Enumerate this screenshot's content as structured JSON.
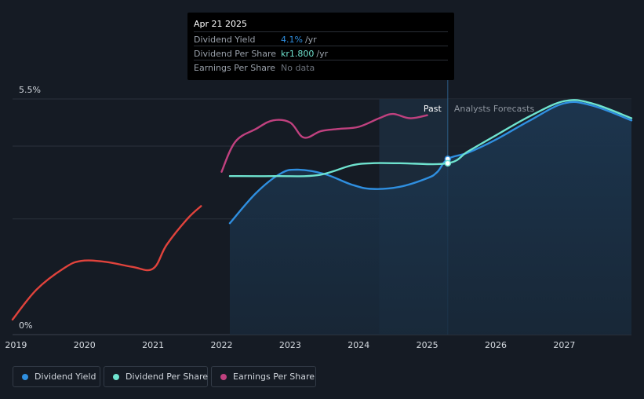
{
  "colors": {
    "background": "#151b24",
    "grid": "#2b323d",
    "dividend_yield": "#2f8fe0",
    "dividend_per_share": "#6fe3cf",
    "earnings_per_share": "#c0417f",
    "earnings_early": "#e0433c",
    "forecast_band": "#1d3650"
  },
  "tooltip": {
    "date": "Apr 21 2025",
    "rows": [
      {
        "label": "Dividend Yield",
        "value": "4.1%",
        "unit": "/yr",
        "color": "#2f8fe0"
      },
      {
        "label": "Dividend Per Share",
        "value": "kr1.800",
        "unit": "/yr",
        "color": "#6fe3cf"
      },
      {
        "label": "Earnings Per Share",
        "value": "No data",
        "unit": "",
        "color": "#6b717a"
      }
    ]
  },
  "legend": [
    {
      "label": "Dividend Yield",
      "color": "#2f8fe0"
    },
    {
      "label": "Dividend Per Share",
      "color": "#6fe3cf"
    },
    {
      "label": "Earnings Per Share",
      "color": "#c0417f"
    }
  ],
  "chart_data": {
    "type": "line",
    "title": "",
    "xlabel": "",
    "ylabel": "",
    "xlim": [
      2018.95,
      2027.98
    ],
    "ylim": [
      0,
      5.5
    ],
    "y_tick_labels": [
      {
        "value": 5.5,
        "label": "5.5%"
      },
      {
        "value": 0,
        "label": "0%"
      }
    ],
    "x_ticks": [
      2019,
      2020,
      2021,
      2022,
      2023,
      2024,
      2025,
      2026,
      2027
    ],
    "x_tick_labels": [
      "2019",
      "2020",
      "2021",
      "2022",
      "2023",
      "2024",
      "2025",
      "2026",
      "2027"
    ],
    "gridlines_y": [
      5.5,
      4.4,
      2.7
    ],
    "past_label": "Past",
    "forecast_label": "Analysts Forecasts",
    "divider_x": 2025.3,
    "past_highlight_start": 2024.3,
    "series": [
      {
        "name": "Dividend Yield",
        "color": "#2f8fe0",
        "filled": true,
        "points": [
          [
            2022.12,
            2.6
          ],
          [
            2022.5,
            3.3
          ],
          [
            2022.85,
            3.75
          ],
          [
            2023.1,
            3.85
          ],
          [
            2023.5,
            3.75
          ],
          [
            2023.9,
            3.5
          ],
          [
            2024.2,
            3.4
          ],
          [
            2024.6,
            3.45
          ],
          [
            2025.0,
            3.65
          ],
          [
            2025.15,
            3.8
          ],
          [
            2025.3,
            4.1
          ],
          [
            2025.6,
            4.25
          ],
          [
            2026.0,
            4.55
          ],
          [
            2026.5,
            5.0
          ],
          [
            2027.0,
            5.4
          ],
          [
            2027.4,
            5.35
          ],
          [
            2027.98,
            5.0
          ]
        ]
      },
      {
        "name": "Dividend Per Share",
        "color": "#6fe3cf",
        "filled": false,
        "points": [
          [
            2022.12,
            3.7
          ],
          [
            2022.8,
            3.7
          ],
          [
            2023.4,
            3.72
          ],
          [
            2023.9,
            3.95
          ],
          [
            2024.2,
            4.0
          ],
          [
            2024.6,
            4.0
          ],
          [
            2025.3,
            4.0
          ],
          [
            2025.6,
            4.28
          ],
          [
            2026.0,
            4.65
          ],
          [
            2026.5,
            5.1
          ],
          [
            2027.0,
            5.45
          ],
          [
            2027.4,
            5.4
          ],
          [
            2027.98,
            5.05
          ]
        ]
      },
      {
        "name": "Earnings Per Share",
        "color": "#c0417f",
        "segment_colors": [
          "#e0433c",
          "#c0417f"
        ],
        "color_switch_x": 2021.95,
        "filled": false,
        "points": [
          [
            2018.95,
            0.35
          ],
          [
            2019.3,
            1.05
          ],
          [
            2019.7,
            1.55
          ],
          [
            2019.95,
            1.72
          ],
          [
            2020.3,
            1.7
          ],
          [
            2020.7,
            1.58
          ],
          [
            2021.0,
            1.54
          ],
          [
            2021.2,
            2.1
          ],
          [
            2021.5,
            2.7
          ],
          [
            2021.7,
            3.0
          ],
          [
            2022.0,
            3.8
          ],
          [
            2022.2,
            4.5
          ],
          [
            2022.5,
            4.8
          ],
          [
            2022.75,
            5.0
          ],
          [
            2023.0,
            4.95
          ],
          [
            2023.2,
            4.6
          ],
          [
            2023.45,
            4.75
          ],
          [
            2023.7,
            4.8
          ],
          [
            2024.0,
            4.85
          ],
          [
            2024.3,
            5.05
          ],
          [
            2024.5,
            5.15
          ],
          [
            2024.75,
            5.05
          ],
          [
            2025.0,
            5.12
          ]
        ]
      }
    ]
  }
}
